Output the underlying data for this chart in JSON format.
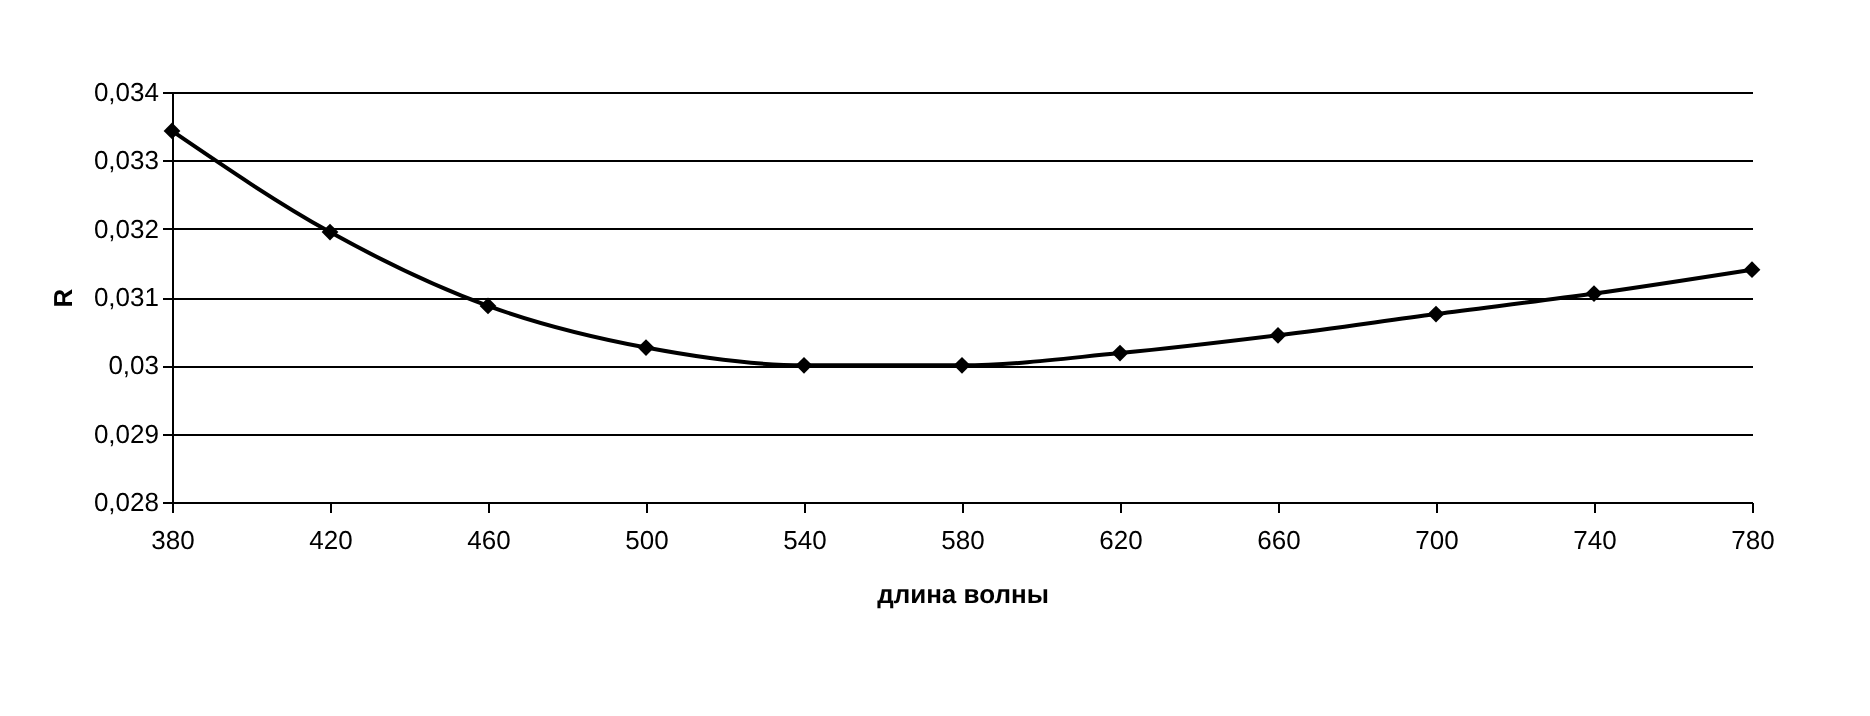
{
  "chart_data": {
    "type": "line",
    "xlabel": "длина волны",
    "ylabel": "R",
    "x": [
      380,
      420,
      460,
      500,
      540,
      580,
      620,
      660,
      700,
      740,
      780
    ],
    "series": [
      {
        "color": "#000000",
        "values": [
          0.03343,
          0.03195,
          0.03087,
          0.03026,
          0.03,
          0.03,
          0.03018,
          0.03044,
          0.03075,
          0.03105,
          0.0314
        ]
      }
    ],
    "xlim": [
      380,
      780
    ],
    "xticks": [
      380,
      420,
      460,
      500,
      540,
      580,
      620,
      660,
      700,
      740,
      780
    ],
    "ylim": [
      0.028,
      0.034
    ],
    "yticks": [
      {
        "value": 0.028,
        "label": "0,028"
      },
      {
        "value": 0.029,
        "label": "0,029"
      },
      {
        "value": 0.03,
        "label": "0,03"
      },
      {
        "value": 0.031,
        "label": "0,031"
      },
      {
        "value": 0.032,
        "label": "0,032"
      },
      {
        "value": 0.033,
        "label": "0,033"
      },
      {
        "value": 0.034,
        "label": "0,034"
      }
    ],
    "grid": "y",
    "marker": "diamond",
    "line_style": "solid"
  }
}
